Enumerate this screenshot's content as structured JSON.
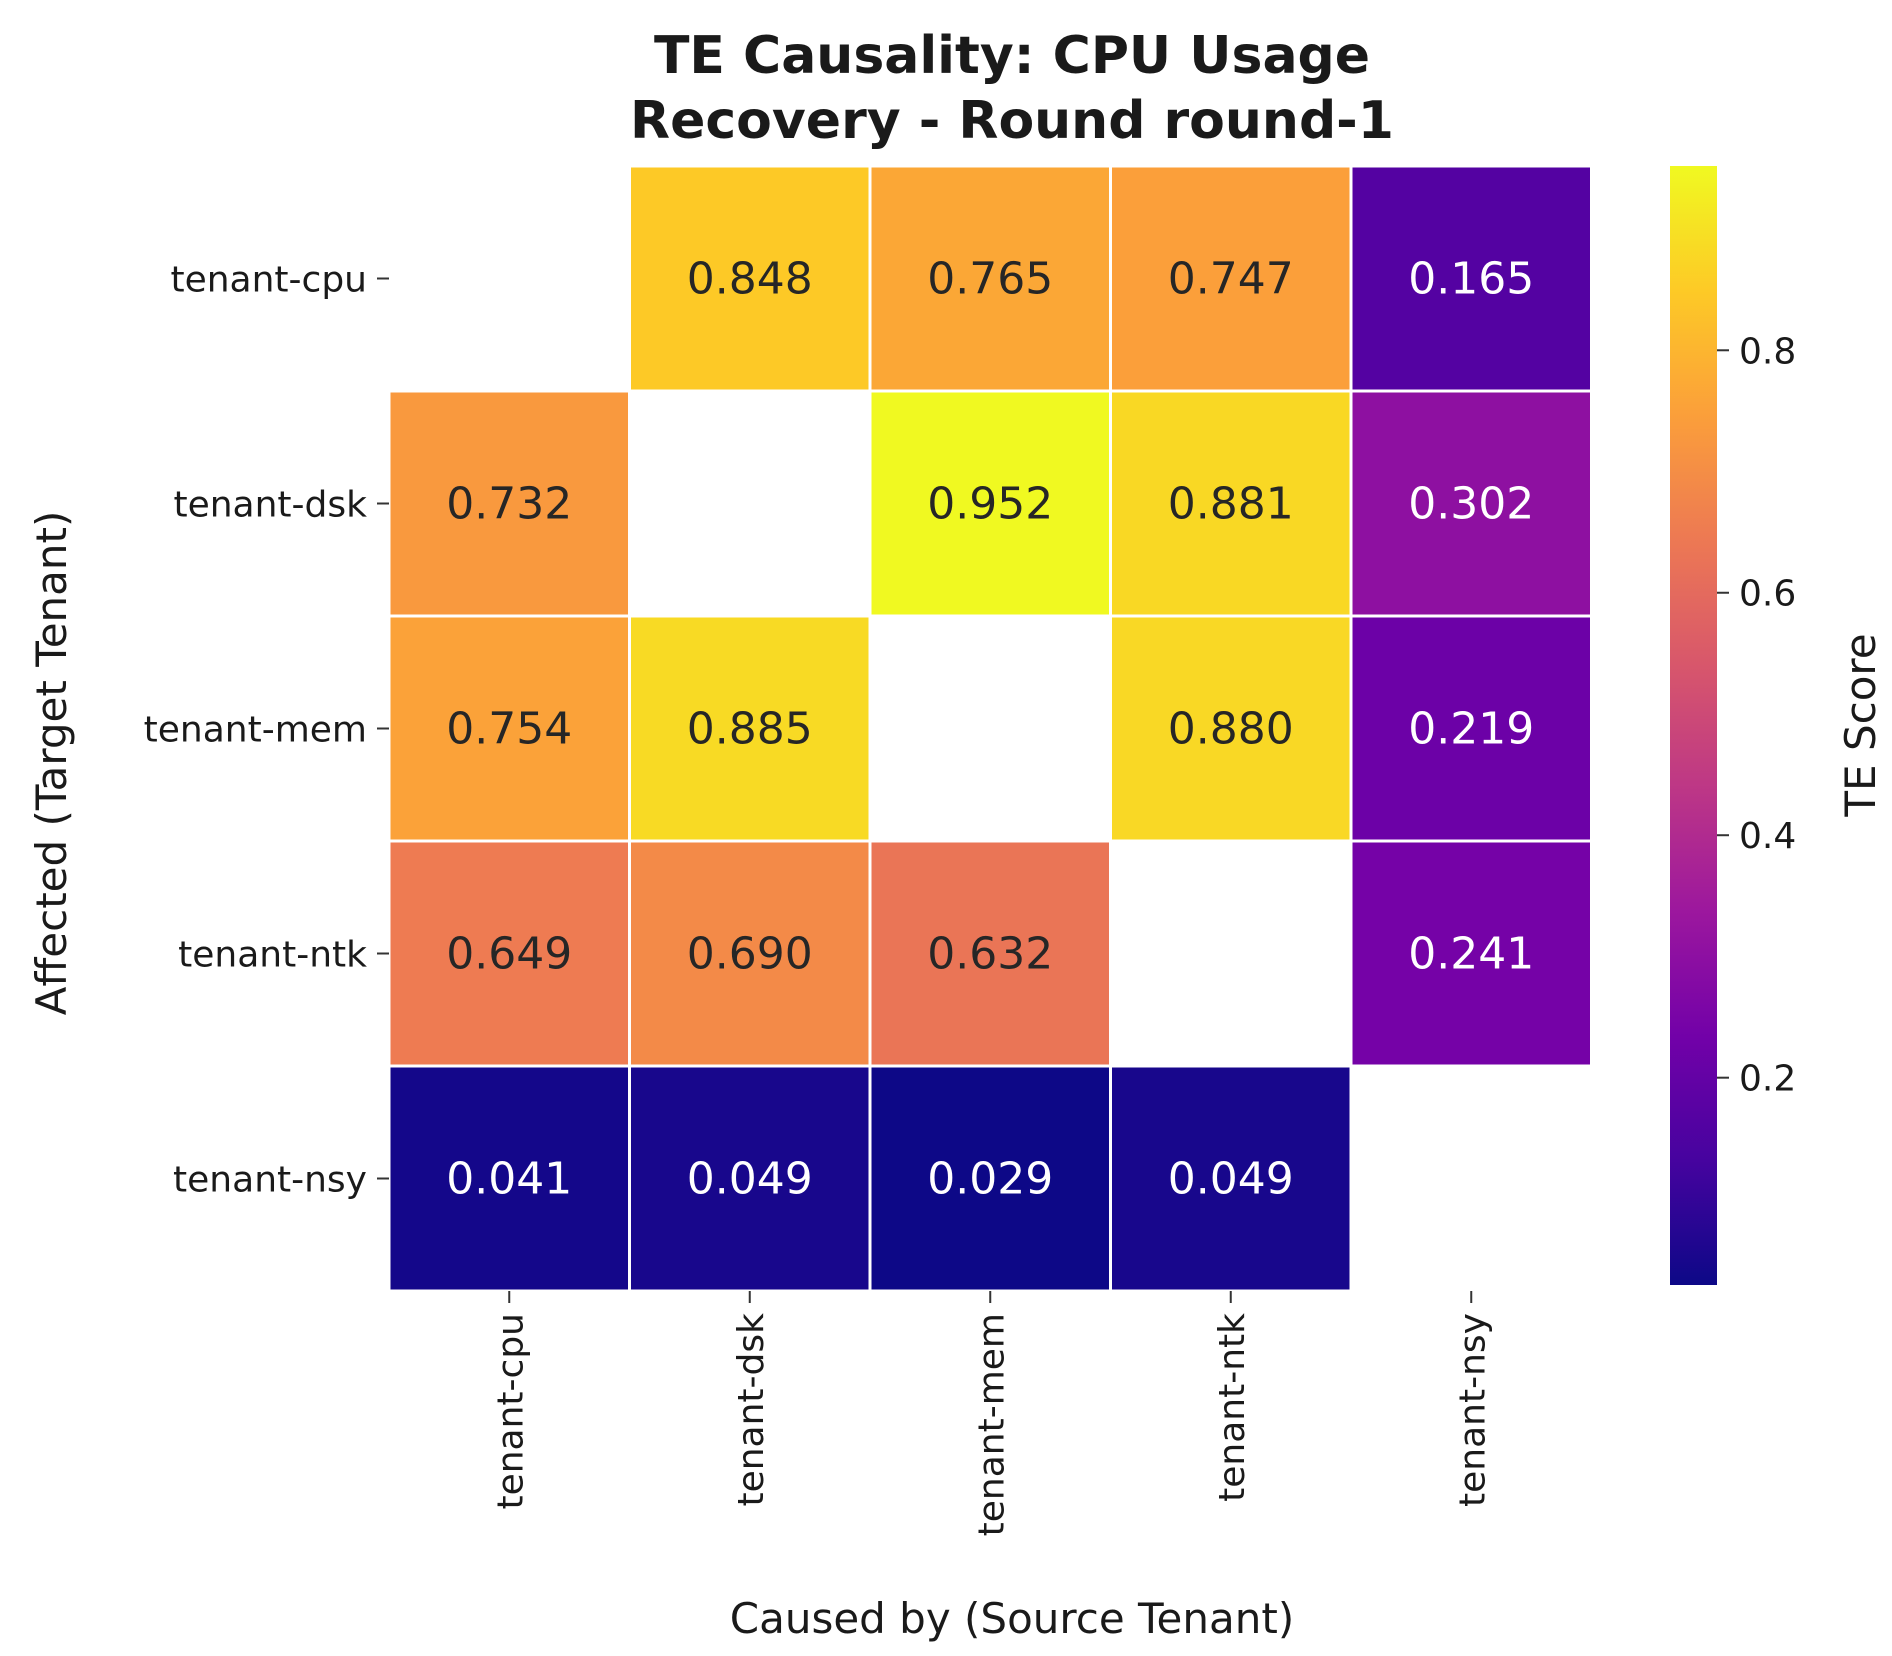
{
  "chart_data": {
    "type": "heatmap",
    "title_lines": [
      "TE Causality: CPU Usage",
      "Recovery - Round round-1"
    ],
    "xlabel": "Caused by (Source Tenant)",
    "ylabel": "Affected (Target Tenant)",
    "x_categories": [
      "tenant-cpu",
      "tenant-dsk",
      "tenant-mem",
      "tenant-ntk",
      "tenant-nsy"
    ],
    "y_categories": [
      "tenant-cpu",
      "tenant-dsk",
      "tenant-mem",
      "tenant-ntk",
      "tenant-nsy"
    ],
    "values": [
      [
        null,
        0.848,
        0.765,
        0.747,
        0.165
      ],
      [
        0.732,
        null,
        0.952,
        0.881,
        0.302
      ],
      [
        0.754,
        0.885,
        null,
        0.88,
        0.219
      ],
      [
        0.649,
        0.69,
        0.632,
        null,
        0.241
      ],
      [
        0.041,
        0.049,
        0.029,
        0.049,
        null
      ]
    ],
    "colormap": "plasma",
    "colorbar": {
      "label": "TE Score",
      "range": [
        0.029,
        0.952
      ],
      "ticks": [
        0.2,
        0.4,
        0.6,
        0.8
      ],
      "tick_labels": [
        "0.2",
        "0.4",
        "0.6",
        "0.8"
      ]
    },
    "grid": false,
    "cell_border_color": "#ffffff",
    "text_color_light": "#ffffff",
    "text_color_dark": "#262626"
  }
}
